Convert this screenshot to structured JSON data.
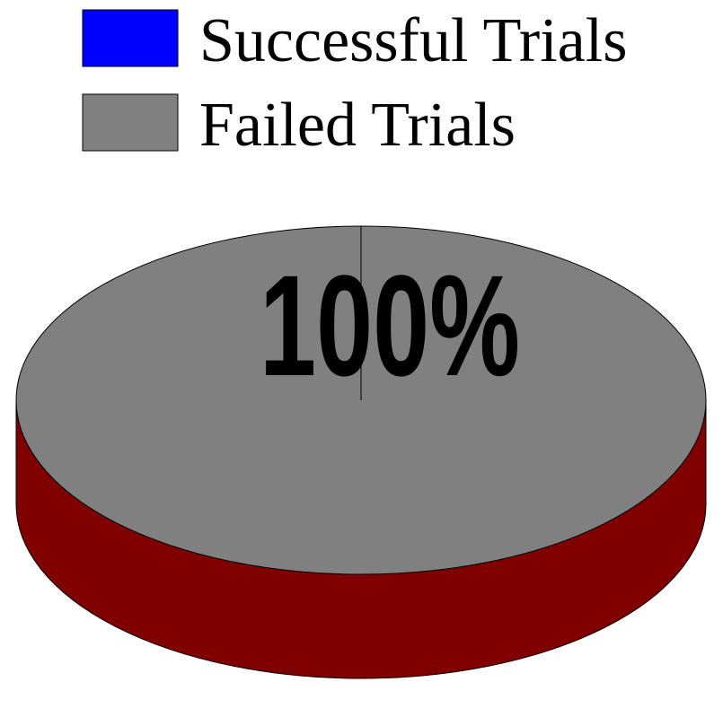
{
  "chart_data": {
    "type": "pie",
    "style": "3d",
    "legend": "top-left",
    "categories": [
      "Successful Trials",
      "Failed Trials"
    ],
    "values": [
      0,
      100
    ],
    "colors": [
      "#0000ff",
      "#808080"
    ],
    "side_color": "#800000",
    "data_labels": [
      "",
      "100%"
    ]
  }
}
